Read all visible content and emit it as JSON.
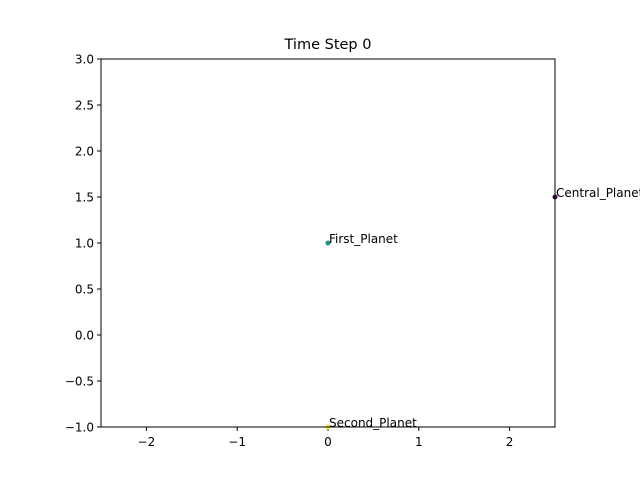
{
  "chart_data": {
    "type": "scatter",
    "title": "Time Step 0",
    "xlabel": "",
    "ylabel": "",
    "xlim": [
      -2.5,
      2.5
    ],
    "ylim": [
      -1.0,
      3.0
    ],
    "grid": false,
    "xticks": [
      -2,
      -1,
      0,
      1,
      2
    ],
    "xtick_labels": [
      "−2",
      "−1",
      "0",
      "1",
      "2"
    ],
    "yticks": [
      -1.0,
      -0.5,
      0.0,
      0.5,
      1.0,
      1.5,
      2.0,
      2.5,
      3.0
    ],
    "ytick_labels": [
      "−1.0",
      "−0.5",
      "0.0",
      "0.5",
      "1.0",
      "1.5",
      "2.0",
      "2.5",
      "3.0"
    ],
    "points": [
      {
        "label": "Central_Planet",
        "x": 2.5,
        "y": 1.5,
        "color": "#440154"
      },
      {
        "label": "First_Planet",
        "x": 0.0,
        "y": 1.0,
        "color": "#21918c"
      },
      {
        "label": "Second_Planet",
        "x": 0.0,
        "y": -1.0,
        "color": "#fde725"
      }
    ]
  }
}
